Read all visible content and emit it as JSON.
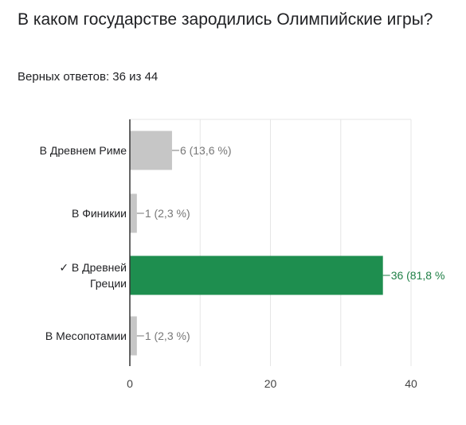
{
  "question": {
    "title": "В каком государстве зародились Олимпийские игры?",
    "score_text": "Верных ответов: 36 из 44"
  },
  "colors": {
    "incorrect_bar": "#c6c6c6",
    "correct_bar": "#1e8e4f",
    "correct_label": "#1e7f45",
    "incorrect_label": "#777777",
    "grid": "#e6e6e6",
    "axis": "#333333"
  },
  "chart_data": {
    "type": "bar",
    "orientation": "horizontal",
    "categories": [
      "В Древнем Риме",
      "В Финикии",
      "✓ В Древней Греции",
      "В Месопотамии"
    ],
    "category_lines": [
      [
        "В Древнем Риме"
      ],
      [
        "В Финикии"
      ],
      [
        "✓ В Древней",
        "Греции"
      ],
      [
        "В Месопотамии"
      ]
    ],
    "values": [
      6,
      1,
      36,
      1
    ],
    "correct": [
      false,
      false,
      true,
      false
    ],
    "data_labels": [
      "6 (13,6 %)",
      "1 (2,3 %)",
      "36 (81,8 %",
      "1 (2,3 %)"
    ],
    "xlim": [
      0,
      40
    ],
    "xticks": [
      0,
      20,
      40
    ],
    "xtick_labels": [
      "0",
      "20",
      "40"
    ],
    "grid": true,
    "title": "",
    "xlabel": "",
    "ylabel": ""
  }
}
